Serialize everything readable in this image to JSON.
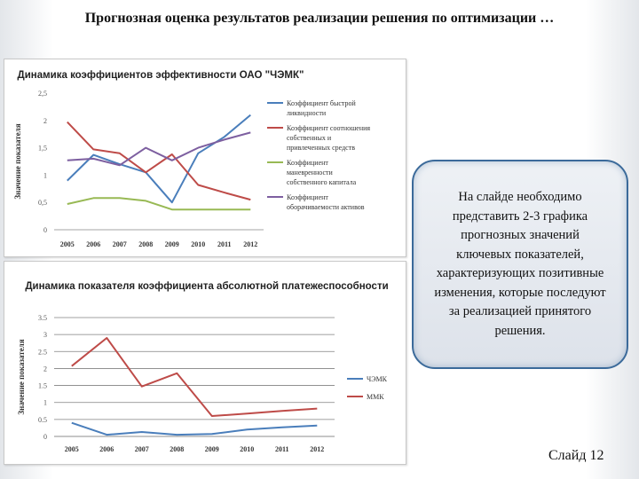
{
  "slide": {
    "title": "Прогнозная оценка результатов реализации решения по оптимизации …",
    "callout_text": "На слайде необходимо представить 2-3 графика прогнозных значений ключевых показателей, характеризующих позитивные изменения, которые последуют за реализацией принятого решения.",
    "slide_number": "Слайд 12"
  },
  "chart_data": [
    {
      "type": "line",
      "title": "Динамика коэффициентов эффективности ОАО \"ЧЭМК\"",
      "ylabel": "Значение показателя",
      "xlabel": "",
      "categories": [
        "2005",
        "2006",
        "2007",
        "2008",
        "2009",
        "2010",
        "2011",
        "2012"
      ],
      "ylim": [
        0,
        2.5
      ],
      "yticks": [
        "0",
        "0,5",
        "1",
        "1,5",
        "2",
        "2,5"
      ],
      "grid": false,
      "legend": "right",
      "series": [
        {
          "name": "Коэффициент быстрой ликвидности",
          "color": "#4a7ebb",
          "values": [
            0.9,
            1.37,
            1.2,
            1.05,
            0.5,
            1.4,
            1.7,
            2.1
          ]
        },
        {
          "name": "Коэффициент соотношения собственных и привлеченных средств",
          "color": "#be4b48",
          "values": [
            1.97,
            1.47,
            1.4,
            1.05,
            1.38,
            0.82,
            0.68,
            0.55
          ]
        },
        {
          "name": "Коэффициент маневренности собственного капитала",
          "color": "#98b954",
          "values": [
            0.47,
            0.58,
            0.58,
            0.53,
            0.37,
            0.37,
            0.37,
            0.37
          ]
        },
        {
          "name": "Коэффициент оборачиваемости активов",
          "color": "#7d5fa0",
          "values": [
            1.27,
            1.3,
            1.18,
            1.5,
            1.27,
            1.5,
            1.65,
            1.78
          ]
        }
      ]
    },
    {
      "type": "line",
      "title": "Динамика показателя коэффициента абсолютной платежеспособности",
      "ylabel": "Значение показателя",
      "xlabel": "",
      "categories": [
        "2005",
        "2006",
        "2007",
        "2008",
        "2009",
        "2010",
        "2011",
        "2012"
      ],
      "ylim": [
        0,
        3.5
      ],
      "yticks": [
        "0",
        "0.5",
        "1",
        "1.5",
        "2",
        "2.5",
        "3",
        "3.5"
      ],
      "grid": true,
      "legend": "right",
      "series": [
        {
          "name": "ЧЭМК",
          "color": "#4a7ebb",
          "values": [
            0.4,
            0.05,
            0.13,
            0.05,
            0.07,
            0.2,
            0.27,
            0.32
          ]
        },
        {
          "name": "ММК",
          "color": "#be4b48",
          "values": [
            2.07,
            2.9,
            1.47,
            1.86,
            0.6,
            0.67,
            0.75,
            0.82
          ]
        }
      ]
    }
  ]
}
